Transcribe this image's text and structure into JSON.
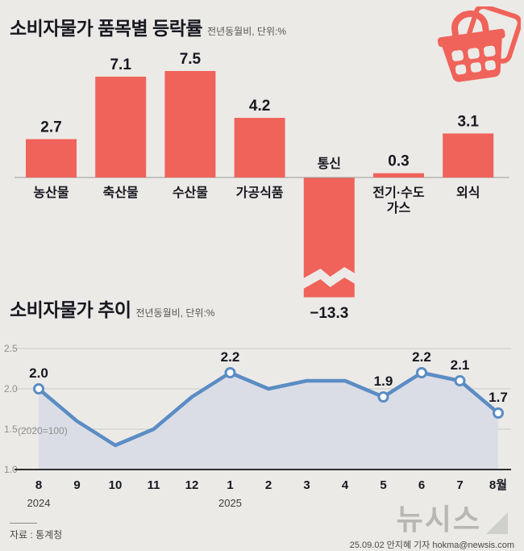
{
  "colors": {
    "background": "#eceae7",
    "bar": "#f0635a",
    "ink": "#17171f",
    "muted_text": "#555553",
    "tick_text": "#8f8f8c",
    "grid": "#c9c9c5",
    "axis_dark": "#2e2e2e",
    "axis_light": "#9a9a97",
    "line": "#5b8cc4",
    "area_fill": "#d8dce5",
    "logo_gray": "#b7b7b4",
    "logo_triangle": "#cfcfcc"
  },
  "bar_section": {
    "title": "소비자물가 품목별 등락률",
    "subtitle": "전년동월비, 단위:%"
  },
  "trend_section": {
    "title": "소비자물가 추이",
    "subtitle": "전년동월비, 단위:%"
  },
  "footer": {
    "source": "자료 : 통계청",
    "logo": "뉴시스",
    "credit": "25.09.02 안지혜 기자 hokma@newsis.com"
  },
  "chart_data": [
    {
      "type": "bar",
      "title": "소비자물가 품목별 등락률",
      "subtitle": "전년동월비, 단위:%",
      "categories": [
        "농산물",
        "축산물",
        "수산물",
        "가공식품",
        "통신",
        "전기·수도가스",
        "외식"
      ],
      "category_lines": [
        [
          "농산물"
        ],
        [
          "축산물"
        ],
        [
          "수산물"
        ],
        [
          "가공식품"
        ],
        [
          "통신"
        ],
        [
          "전기·수도",
          "가스"
        ],
        [
          "외식"
        ]
      ],
      "values": [
        2.7,
        7.1,
        7.5,
        4.2,
        -13.3,
        0.3,
        3.1
      ],
      "value_labels": [
        "2.7",
        "7.1",
        "7.5",
        "4.2",
        "−13.3",
        "0.3",
        "3.1"
      ],
      "axis_break_on_negative": true
    },
    {
      "type": "line",
      "title": "소비자물가 추이",
      "x": [
        "8",
        "9",
        "10",
        "11",
        "12",
        "1",
        "2",
        "3",
        "4",
        "5",
        "6",
        "7",
        "8월"
      ],
      "values": [
        2.0,
        1.6,
        1.3,
        1.5,
        1.9,
        2.2,
        2.0,
        2.1,
        2.1,
        1.9,
        2.2,
        2.1,
        1.7
      ],
      "point_labels": {
        "0": "2.0",
        "5": "2.2",
        "9": "1.9",
        "10": "2.2",
        "11": "2.1",
        "12": "1.7"
      },
      "ylim": [
        1.0,
        2.5
      ],
      "yticks": [
        2.5,
        2.0,
        1.5,
        1.0
      ],
      "annotation": "(2020=100)",
      "year_labels": [
        {
          "index": 0,
          "label": "2024"
        },
        {
          "index": 5,
          "label": "2025"
        }
      ],
      "grid": true,
      "legend": "none"
    }
  ]
}
